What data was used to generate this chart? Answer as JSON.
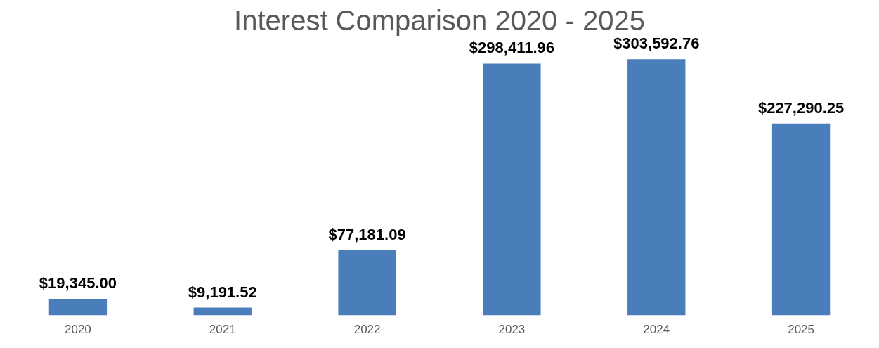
{
  "chart_data": {
    "type": "bar",
    "title": "Interest Comparison 2020 - 2025",
    "categories": [
      "2020",
      "2021",
      "2022",
      "2023",
      "2024",
      "2025"
    ],
    "values": [
      19345.0,
      9191.52,
      77181.09,
      298411.96,
      303592.76,
      227290.25
    ],
    "value_labels": [
      "$19,345.00",
      "$9,191.52",
      "$77,181.09",
      "$298,411.96",
      "$303,592.76",
      "$227,290.25"
    ],
    "color": "#4a7ebb",
    "grid": false,
    "legend": false
  }
}
